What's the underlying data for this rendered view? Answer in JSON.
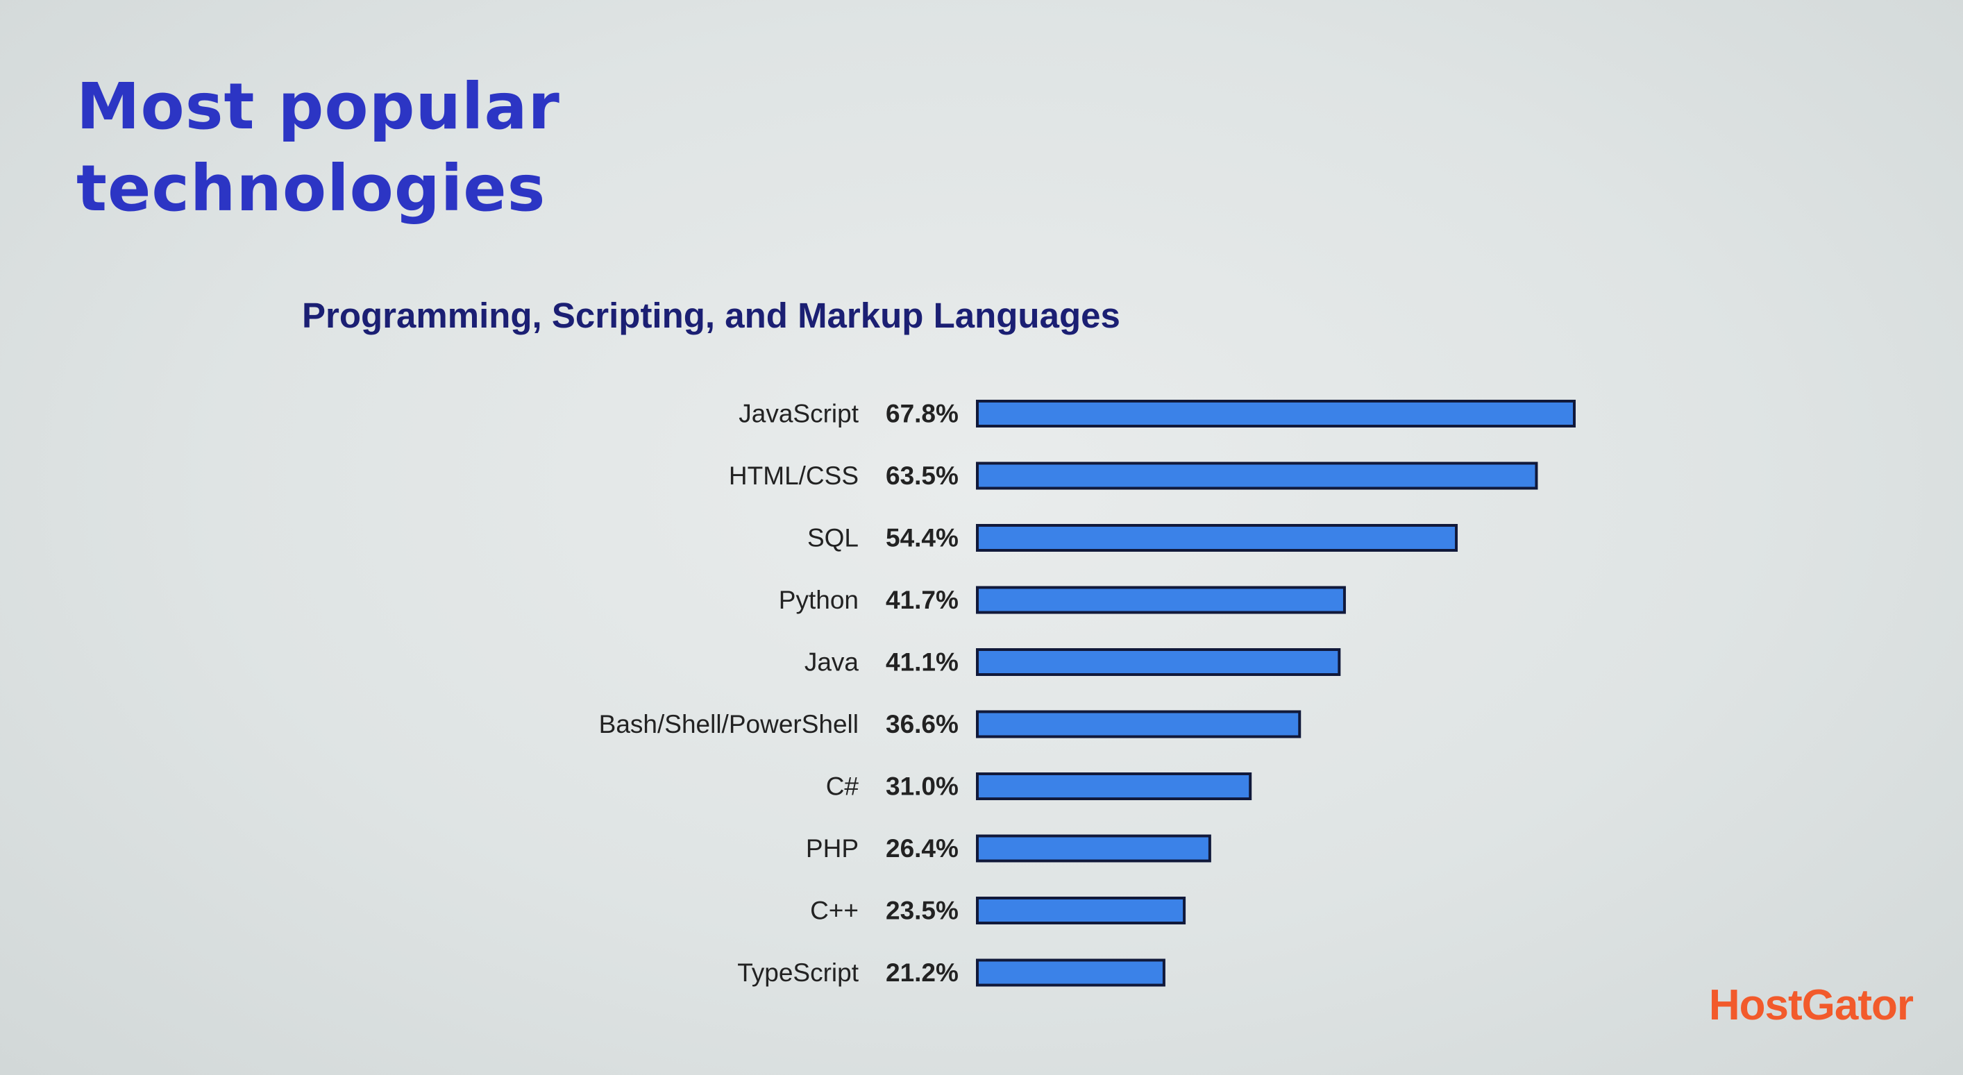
{
  "slide": {
    "title_line1": "Most popular",
    "title_line2": "technologies"
  },
  "brand": {
    "name": "HostGator"
  },
  "colors": {
    "title": "#2c35c4",
    "chart_title": "#1b1f73",
    "bar_fill": "#3b82e8",
    "bar_stroke": "#11193a",
    "brand": "#f25a2b"
  },
  "chart_data": {
    "type": "bar",
    "orientation": "horizontal",
    "title": "Programming, Scripting, and Markup Languages",
    "categories": [
      "JavaScript",
      "HTML/CSS",
      "SQL",
      "Python",
      "Java",
      "Bash/Shell/PowerShell",
      "C#",
      "PHP",
      "C++",
      "TypeScript"
    ],
    "values": [
      67.8,
      63.5,
      54.4,
      41.7,
      41.1,
      36.6,
      31.0,
      26.4,
      23.5,
      21.2
    ],
    "value_labels": [
      "67.8%",
      "63.5%",
      "54.4%",
      "41.7%",
      "41.1%",
      "36.6%",
      "31.0%",
      "26.4%",
      "23.5%",
      "21.2%"
    ],
    "unit": "%",
    "xlim": [
      0,
      67.8
    ],
    "grid": false,
    "legend": "none"
  }
}
